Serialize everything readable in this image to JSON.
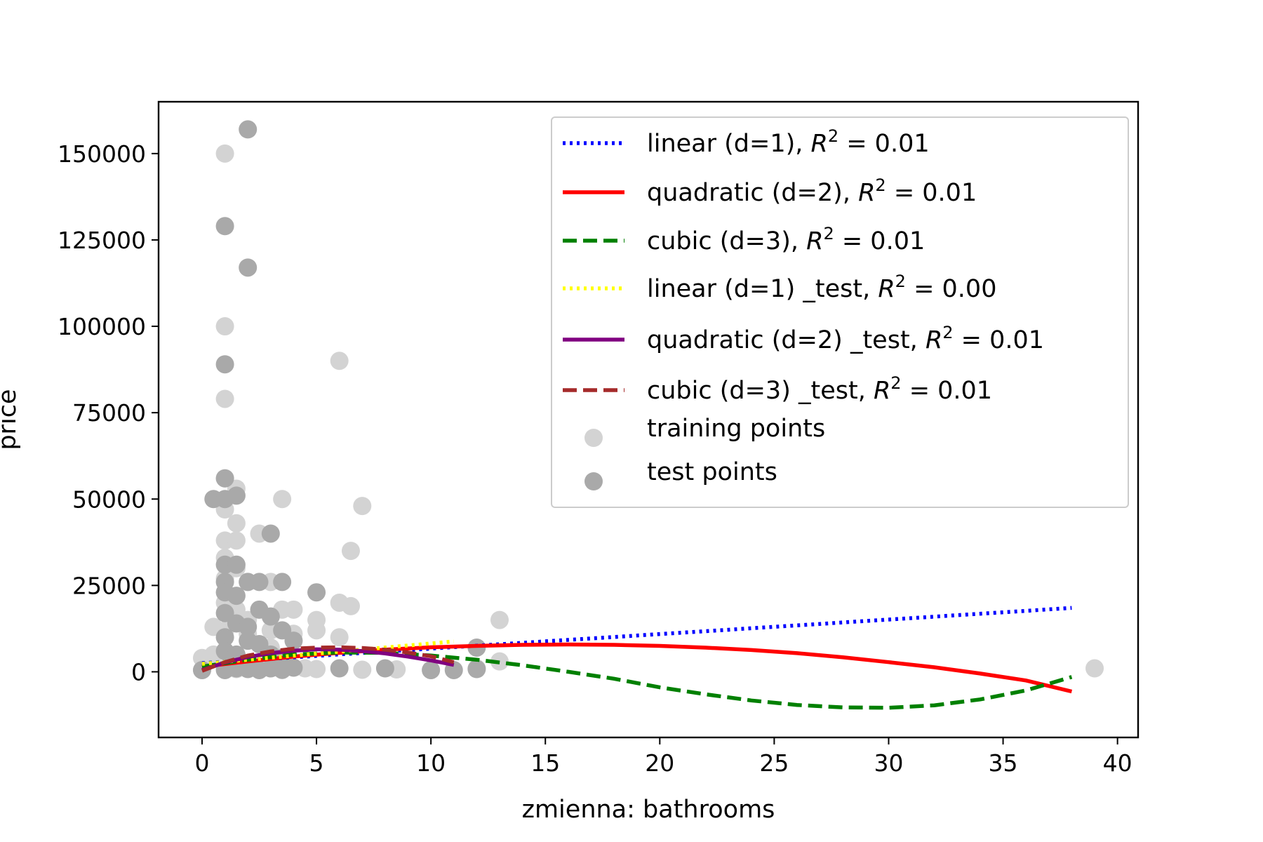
{
  "chart_data": {
    "type": "scatter",
    "title": "",
    "xlabel": "zmienna: bathrooms",
    "ylabel": "price",
    "xlim": [
      -1.9,
      40.9
    ],
    "ylim": [
      -19000,
      165000
    ],
    "xticks": [
      0,
      5,
      10,
      15,
      20,
      25,
      30,
      35,
      40
    ],
    "yticks": [
      0,
      25000,
      50000,
      75000,
      100000,
      125000,
      150000
    ],
    "grid": false,
    "legend_position": "top-right",
    "scatter_series": [
      {
        "name": "training points",
        "color": "#d3d3d3",
        "points": [
          [
            1,
            150000
          ],
          [
            1,
            100000
          ],
          [
            1,
            79000
          ],
          [
            6,
            90000
          ],
          [
            1,
            56000
          ],
          [
            1.5,
            53000
          ],
          [
            1,
            47000
          ],
          [
            1.5,
            43000
          ],
          [
            2.5,
            40000
          ],
          [
            3.5,
            50000
          ],
          [
            7,
            48000
          ],
          [
            6.5,
            35000
          ],
          [
            1,
            38000
          ],
          [
            1.5,
            38000
          ],
          [
            1,
            33000
          ],
          [
            1.5,
            30000
          ],
          [
            1,
            27000
          ],
          [
            2,
            26000
          ],
          [
            3,
            26000
          ],
          [
            0.5,
            13000
          ],
          [
            1,
            20000
          ],
          [
            1.5,
            18000
          ],
          [
            2,
            15000
          ],
          [
            3.5,
            18000
          ],
          [
            4,
            18000
          ],
          [
            5,
            15000
          ],
          [
            6,
            20000
          ],
          [
            6.5,
            19000
          ],
          [
            13,
            15000
          ],
          [
            0,
            4000
          ],
          [
            0.5,
            5000
          ],
          [
            2,
            9000
          ],
          [
            3,
            7000
          ],
          [
            4,
            11000
          ],
          [
            5,
            12000
          ],
          [
            6,
            10000
          ],
          [
            1,
            12000
          ],
          [
            2,
            11000
          ],
          [
            3,
            12000
          ],
          [
            0,
            500
          ],
          [
            1,
            1000
          ],
          [
            1.5,
            800
          ],
          [
            2.5,
            2000
          ],
          [
            3.5,
            500
          ],
          [
            4.5,
            1000
          ],
          [
            5,
            800
          ],
          [
            7,
            600
          ],
          [
            8.5,
            700
          ],
          [
            10,
            500
          ],
          [
            12,
            1000
          ],
          [
            13,
            3000
          ],
          [
            39,
            1000
          ]
        ]
      },
      {
        "name": "test points",
        "color": "#a9a9a9",
        "points": [
          [
            2,
            157000
          ],
          [
            1,
            129000
          ],
          [
            2,
            117000
          ],
          [
            1,
            89000
          ],
          [
            1,
            56000
          ],
          [
            0.5,
            50000
          ],
          [
            1,
            50000
          ],
          [
            1.5,
            51000
          ],
          [
            3,
            40000
          ],
          [
            1,
            31000
          ],
          [
            1.5,
            31000
          ],
          [
            1,
            26000
          ],
          [
            2,
            26000
          ],
          [
            2.5,
            26000
          ],
          [
            3.5,
            26000
          ],
          [
            1,
            23000
          ],
          [
            1.5,
            22000
          ],
          [
            5,
            23000
          ],
          [
            2.5,
            18000
          ],
          [
            3,
            16000
          ],
          [
            1,
            17000
          ],
          [
            1.5,
            14000
          ],
          [
            2,
            13000
          ],
          [
            3.5,
            12000
          ],
          [
            1,
            10000
          ],
          [
            2,
            9000
          ],
          [
            2.5,
            8000
          ],
          [
            4,
            9000
          ],
          [
            1,
            6000
          ],
          [
            1.5,
            5000
          ],
          [
            3,
            5000
          ],
          [
            3.5,
            4000
          ],
          [
            12,
            7000
          ],
          [
            0,
            500
          ],
          [
            1,
            500
          ],
          [
            1.5,
            1000
          ],
          [
            2,
            800
          ],
          [
            2.5,
            500
          ],
          [
            3,
            1000
          ],
          [
            3.5,
            600
          ],
          [
            4,
            1200
          ],
          [
            6,
            1000
          ],
          [
            8,
            1000
          ],
          [
            10,
            500
          ],
          [
            11,
            500
          ],
          [
            12,
            800
          ]
        ]
      }
    ],
    "line_series": [
      {
        "name": "linear (d=1), ",
        "r2": "0.01",
        "color": "#0000ff",
        "dash": "dotted",
        "x": [
          0,
          38
        ],
        "y": [
          2500,
          18500
        ]
      },
      {
        "name": "quadratic (d=2), ",
        "r2": "0.01",
        "color": "#ff0000",
        "dash": "solid",
        "x": [
          0,
          2,
          4,
          6,
          8,
          10,
          12,
          14,
          16,
          18,
          20,
          22,
          24,
          26,
          28,
          30,
          32,
          34,
          36,
          38
        ],
        "y": [
          1500,
          3000,
          4400,
          5500,
          6400,
          7100,
          7500,
          7800,
          7900,
          7800,
          7500,
          7000,
          6300,
          5400,
          4200,
          2800,
          1300,
          -500,
          -2500,
          -5700
        ]
      },
      {
        "name": "cubic (d=3), ",
        "r2": "0.01",
        "color": "#008000",
        "dash": "dashed",
        "x": [
          0,
          2,
          4,
          6,
          8,
          10,
          12,
          14,
          16,
          18,
          20,
          22,
          24,
          26,
          28,
          30,
          32,
          34,
          36,
          38
        ],
        "y": [
          1500,
          3500,
          5000,
          5600,
          5500,
          4700,
          3500,
          1900,
          0,
          -2000,
          -4500,
          -6500,
          -8300,
          -9600,
          -10300,
          -10400,
          -9700,
          -8000,
          -5400,
          -1500
        ]
      },
      {
        "name": "linear (d=1) _test, ",
        "r2": "0.00",
        "color": "#ffff00",
        "dash": "dotted",
        "x": [
          0,
          11
        ],
        "y": [
          2300,
          8800
        ]
      },
      {
        "name": "quadratic (d=2) _test, ",
        "r2": "0.01",
        "color": "#800080",
        "dash": "solid",
        "x": [
          0,
          1,
          2,
          3,
          4,
          5,
          6,
          7,
          8,
          9,
          10,
          11
        ],
        "y": [
          500,
          2700,
          4300,
          5400,
          6100,
          6500,
          6400,
          6000,
          5300,
          4400,
          3300,
          2000
        ]
      },
      {
        "name": "cubic (d=3) _test, ",
        "r2": "0.01",
        "color": "#a52a2a",
        "dash": "dashed",
        "x": [
          0,
          1,
          2,
          3,
          4,
          5,
          6,
          7,
          8,
          9,
          10,
          11
        ],
        "y": [
          300,
          2800,
          4700,
          5900,
          6700,
          7000,
          7100,
          6900,
          6400,
          5600,
          4500,
          2800
        ]
      }
    ]
  }
}
